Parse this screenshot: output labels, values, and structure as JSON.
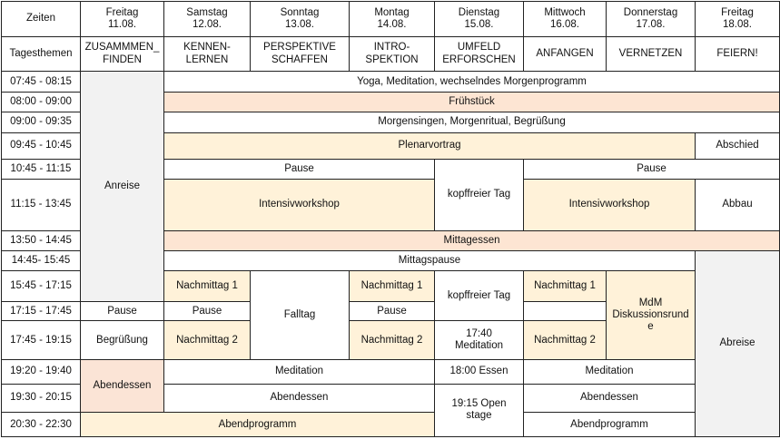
{
  "header": {
    "zeiten": "Zeiten",
    "days": [
      {
        "name": "Freitag",
        "date": "11.08."
      },
      {
        "name": "Samstag",
        "date": "12.08."
      },
      {
        "name": "Sonntag",
        "date": "13.08."
      },
      {
        "name": "Montag",
        "date": "14.08."
      },
      {
        "name": "Dienstag",
        "date": "15.08."
      },
      {
        "name": "Mittwoch",
        "date": "16.08."
      },
      {
        "name": "Donnerstag",
        "date": "17.08."
      },
      {
        "name": "Freitag",
        "date": "18.08."
      }
    ]
  },
  "themes": {
    "label": "Tagesthemen",
    "items": [
      {
        "l1": "ZUSAMMMEN_",
        "l2": "FINDEN"
      },
      {
        "l1": "KENNEN-",
        "l2": "LERNEN"
      },
      {
        "l1": "PERSPEKTIVE",
        "l2": "SCHAFFEN"
      },
      {
        "l1": "INTRO-",
        "l2": "SPEKTION"
      },
      {
        "l1": "UMFELD",
        "l2": "ERFORSCHEN"
      },
      {
        "l1": "ANFANGEN",
        "l2": ""
      },
      {
        "l1": "VERNETZEN",
        "l2": ""
      },
      {
        "l1": "FEIERN!",
        "l2": ""
      }
    ]
  },
  "times": [
    "07:45 - 08:15",
    "08:00 - 09:00",
    "09:00 - 09:35",
    "09:45 - 10:45",
    "10:45 - 11:15",
    "11:15 - 13:45",
    "13:50 - 14:45",
    "14:45- 15:45",
    "15:45 - 17:15",
    "17:15 - 17:45",
    "17:45 - 19:15",
    "19:20 - 19:40",
    "19:30 - 20:15",
    "20:30 - 22:30"
  ],
  "events": {
    "anreise": "Anreise",
    "yoga": "Yoga, Meditation, wechselndes Morgenprogramm",
    "fruehstueck": "Frühstück",
    "morgensingen": "Morgensingen, Morgenritual, Begrüßung",
    "plenarvortrag": "Plenarvortrag",
    "abschied": "Abschied",
    "pause": "Pause",
    "kopffrei": "kopffreier Tag",
    "intensiv": "Intensivworkshop",
    "abbau": "Abbau",
    "mittagessen": "Mittagessen",
    "mittagspause": "Mittagspause",
    "abreise": "Abreise",
    "nachmittag1": "Nachmittag 1",
    "nachmittag2": "Nachmittag 2",
    "falltag": "Falltag",
    "mdm_l1": "MdM",
    "mdm_l2": "Diskussionsrund",
    "mdm_l3": "e",
    "begruessung": "Begrüßung",
    "meditation_time": "17:40",
    "meditation": "Meditation",
    "abendessen": "Abendessen",
    "essen_1800": "18:00 Essen",
    "open_stage_l1": "19:15 Open",
    "open_stage_l2": "stage",
    "abendprogramm": "Abendprogramm"
  },
  "colors": {
    "cream": "#fff2d9",
    "peach": "#fde5d3",
    "border": "#222222"
  }
}
